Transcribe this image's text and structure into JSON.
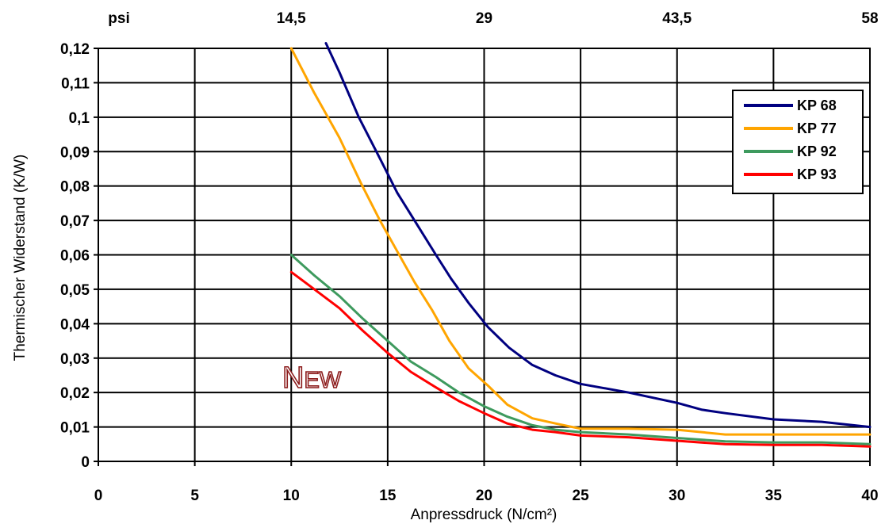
{
  "chart_data": {
    "type": "line",
    "title": "",
    "xlabel": "Anpressdruck (N/cm²)",
    "ylabel": "Thermischer Widerstand (K/W)",
    "xlim": [
      0,
      40
    ],
    "ylim": [
      0,
      0.12
    ],
    "x_ticks": [
      0,
      5,
      10,
      15,
      20,
      25,
      30,
      35,
      40
    ],
    "x_tick_labels": [
      "0",
      "5",
      "10",
      "15",
      "20",
      "25",
      "30",
      "35",
      "40"
    ],
    "y_ticks": [
      0,
      0.01,
      0.02,
      0.03,
      0.04,
      0.05,
      0.06,
      0.07,
      0.08,
      0.09,
      0.1,
      0.11,
      0.12
    ],
    "y_tick_labels": [
      "0",
      "0,01",
      "0,02",
      "0,03",
      "0,04",
      "0,05",
      "0,06",
      "0,07",
      "0,08",
      "0,09",
      "0,1",
      "0,11",
      "0,12"
    ],
    "top_axis": {
      "unit_label": "psi",
      "ticks": [
        10,
        20,
        30,
        40
      ],
      "tick_labels": [
        "14,5",
        "29",
        "43,5",
        "58"
      ]
    },
    "grid": true,
    "legend_position": "top-right",
    "annotation": "New",
    "series": [
      {
        "name": "KP 68",
        "color": "#000080",
        "points": [
          [
            11.8,
            0.1215
          ],
          [
            12.5,
            0.113
          ],
          [
            13.5,
            0.1
          ],
          [
            14.6,
            0.088
          ],
          [
            15.5,
            0.078
          ],
          [
            16.5,
            0.069
          ],
          [
            17.5,
            0.06
          ],
          [
            18.3,
            0.053
          ],
          [
            19.2,
            0.046
          ],
          [
            20.2,
            0.039
          ],
          [
            21.3,
            0.033
          ],
          [
            22.5,
            0.028
          ],
          [
            23.7,
            0.025
          ],
          [
            25,
            0.0225
          ],
          [
            27.5,
            0.02
          ],
          [
            30,
            0.017
          ],
          [
            31.3,
            0.015
          ],
          [
            32.5,
            0.014
          ],
          [
            35,
            0.0122
          ],
          [
            37.5,
            0.0115
          ],
          [
            40,
            0.01
          ]
        ]
      },
      {
        "name": "KP 77",
        "color": "#ffa500",
        "points": [
          [
            10,
            0.12
          ],
          [
            11.2,
            0.107
          ],
          [
            12.5,
            0.094
          ],
          [
            13.6,
            0.081
          ],
          [
            14.6,
            0.07
          ],
          [
            15.5,
            0.061
          ],
          [
            16.4,
            0.052
          ],
          [
            17.3,
            0.044
          ],
          [
            18.2,
            0.035
          ],
          [
            19.2,
            0.027
          ],
          [
            20.2,
            0.022
          ],
          [
            21.2,
            0.0165
          ],
          [
            22.5,
            0.0125
          ],
          [
            23.7,
            0.011
          ],
          [
            25,
            0.0095
          ],
          [
            27.5,
            0.0095
          ],
          [
            30,
            0.0092
          ],
          [
            32.5,
            0.0078
          ],
          [
            35,
            0.0078
          ],
          [
            37.5,
            0.0078
          ],
          [
            40,
            0.0078
          ]
        ]
      },
      {
        "name": "KP 92",
        "color": "#3e9a5e",
        "points": [
          [
            10,
            0.06
          ],
          [
            11.2,
            0.054
          ],
          [
            12.5,
            0.048
          ],
          [
            13.7,
            0.0415
          ],
          [
            15,
            0.035
          ],
          [
            16.2,
            0.029
          ],
          [
            17.5,
            0.0245
          ],
          [
            18.7,
            0.02
          ],
          [
            20,
            0.016
          ],
          [
            21.2,
            0.013
          ],
          [
            22.5,
            0.0105
          ],
          [
            23.7,
            0.0092
          ],
          [
            25,
            0.0085
          ],
          [
            27.5,
            0.0078
          ],
          [
            30,
            0.0068
          ],
          [
            32.5,
            0.0058
          ],
          [
            35,
            0.0055
          ],
          [
            37.5,
            0.0055
          ],
          [
            40,
            0.005
          ]
        ]
      },
      {
        "name": "KP 93",
        "color": "#ff0000",
        "points": [
          [
            10,
            0.055
          ],
          [
            11.2,
            0.05
          ],
          [
            12.5,
            0.0445
          ],
          [
            13.7,
            0.038
          ],
          [
            15,
            0.0315
          ],
          [
            16.2,
            0.026
          ],
          [
            17.5,
            0.0215
          ],
          [
            18.7,
            0.0175
          ],
          [
            20,
            0.014
          ],
          [
            21.2,
            0.011
          ],
          [
            22.5,
            0.0092
          ],
          [
            23.7,
            0.0085
          ],
          [
            25,
            0.0075
          ],
          [
            27.5,
            0.007
          ],
          [
            30,
            0.006
          ],
          [
            32.5,
            0.005
          ],
          [
            35,
            0.0048
          ],
          [
            37.5,
            0.0048
          ],
          [
            40,
            0.0043
          ]
        ]
      }
    ]
  }
}
